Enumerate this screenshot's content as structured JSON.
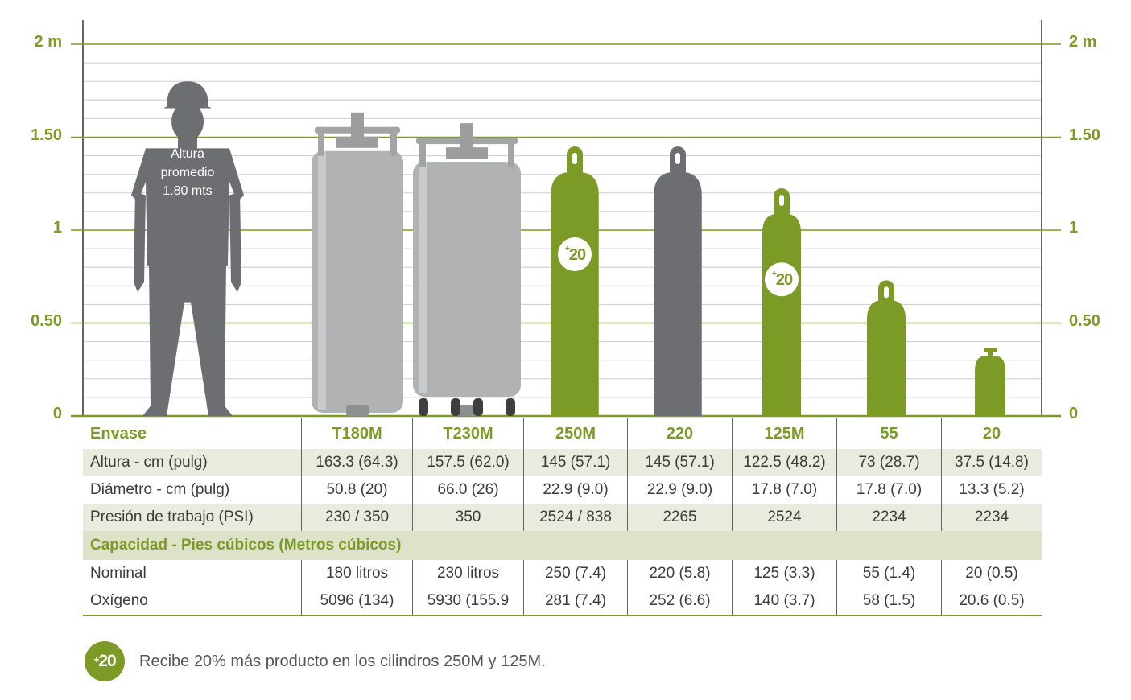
{
  "chart_data": {
    "type": "bar",
    "y_unit": "m",
    "ylim": [
      0,
      2
    ],
    "y_ticks": [
      {
        "value": 0,
        "left": "0",
        "right": "0"
      },
      {
        "value": 0.5,
        "left": "0.50",
        "right": "0.50"
      },
      {
        "value": 1,
        "left": "1",
        "right": "1"
      },
      {
        "value": 1.5,
        "left": "1.50",
        "right": "1.50"
      },
      {
        "value": 2,
        "left": "2 m",
        "right": "2 m"
      }
    ],
    "person": {
      "height_m": 1.8,
      "label_lines": [
        "Altura",
        "promedio",
        "1.80 mts"
      ]
    },
    "categories": [
      "T180M",
      "T230M",
      "250M",
      "220",
      "125M",
      "55",
      "20"
    ],
    "heights_cm": [
      163.3,
      157.5,
      145,
      145,
      122.5,
      73,
      37.5
    ],
    "diameters_cm": [
      50.8,
      66.0,
      22.9,
      22.9,
      17.8,
      17.8,
      13.3
    ],
    "bonus_badge": {
      "text_prefix": "+",
      "text": "20",
      "categories": [
        "250M",
        "125M"
      ]
    },
    "colors": {
      "green": "#7b9a26",
      "gray": "#6d6e71",
      "steel": "#b1b2b4",
      "grid_minor": "#cccccc"
    }
  },
  "table": {
    "header_label": "Envase",
    "columns": [
      "T180M",
      "T230M",
      "250M",
      "220",
      "125M",
      "55",
      "20"
    ],
    "rows": [
      {
        "label": "Altura - cm (pulg)",
        "values": [
          "163.3 (64.3)",
          "157.5 (62.0)",
          "145 (57.1)",
          "145 (57.1)",
          "122.5 (48.2)",
          "73 (28.7)",
          "37.5 (14.8)"
        ]
      },
      {
        "label": "Diámetro - cm (pulg)",
        "values": [
          "50.8 (20)",
          "66.0 (26)",
          "22.9 (9.0)",
          "22.9 (9.0)",
          "17.8 (7.0)",
          "17.8 (7.0)",
          "13.3 (5.2)"
        ]
      },
      {
        "label": "Presión de trabajo (PSI)",
        "values": [
          "230 / 350",
          "350",
          "2524 / 838",
          "2265",
          "2524",
          "2234",
          "2234"
        ]
      }
    ],
    "capacity_label": "Capacidad - Pies cúbicos (Metros cúbicos)",
    "capacity_rows": [
      {
        "label": "Nominal",
        "values": [
          "180 litros",
          "230 litros",
          "250 (7.4)",
          "220 (5.8)",
          "125 (3.3)",
          "55 (1.4)",
          "20 (0.5)"
        ]
      },
      {
        "label": "Oxígeno",
        "values": [
          "5096 (134)",
          "5930 (155.9",
          "281 (7.4)",
          "252 (6.6)",
          "140 (3.7)",
          "58 (1.5)",
          "20.6 (0.5)"
        ]
      }
    ]
  },
  "footer": {
    "badge_prefix": "+",
    "badge_text": "20",
    "note": "Recibe 20% más producto en los cilindros 250M y 125M."
  }
}
